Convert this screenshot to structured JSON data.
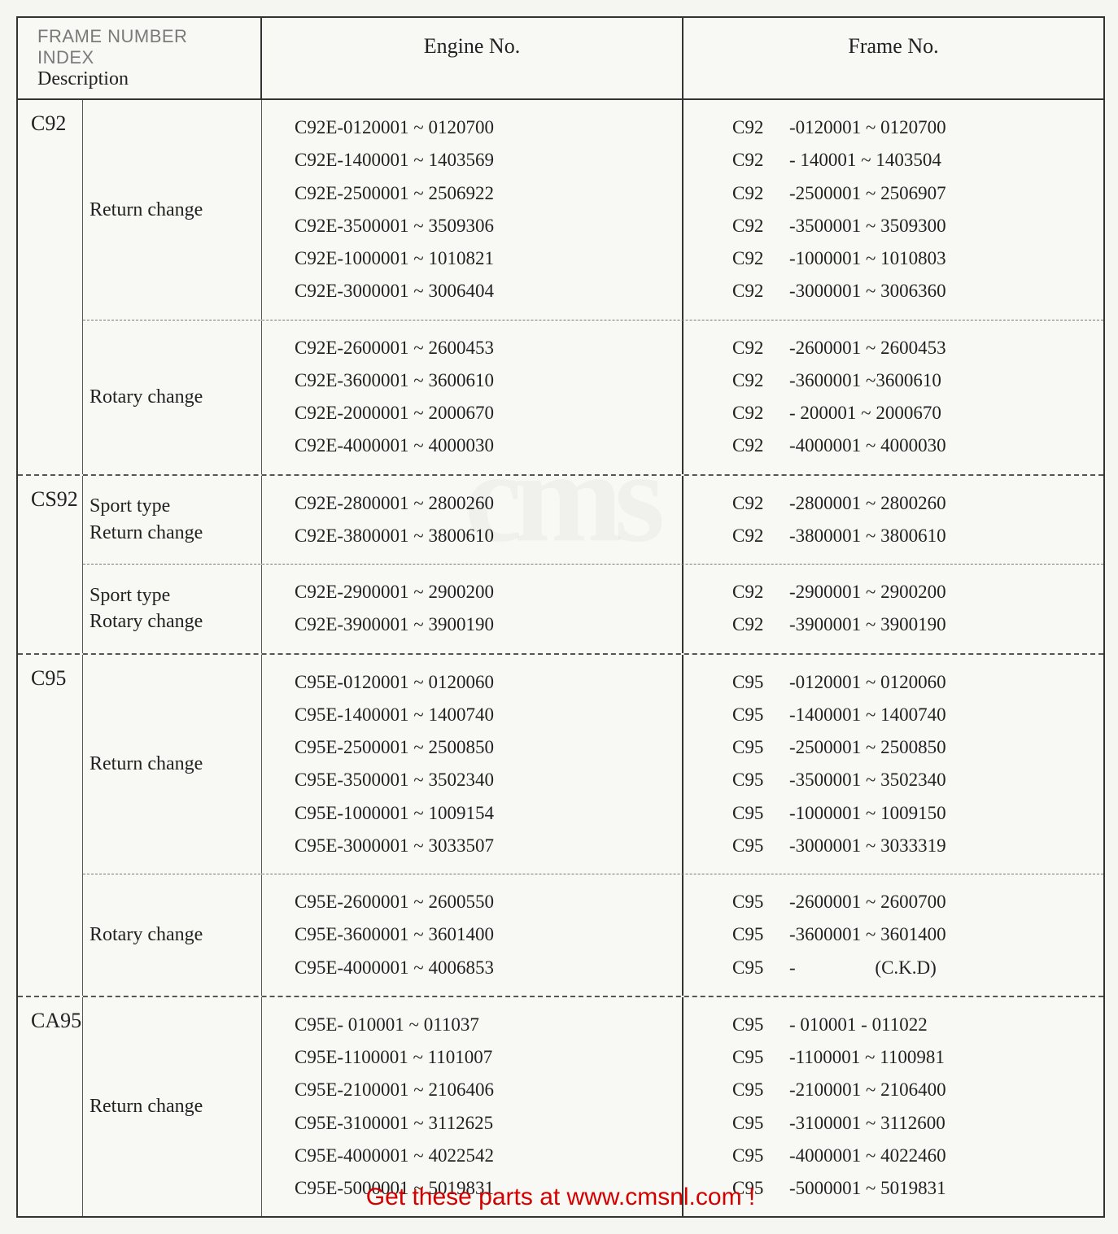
{
  "header": {
    "index_title": "FRAME NUMBER INDEX",
    "description_label": "Description",
    "engine_col": "Engine No.",
    "frame_col": "Frame No."
  },
  "overlay_text": "Get these parts at www.cmsnl.com !",
  "watermark": "cms",
  "models": [
    {
      "model": "C92",
      "groups": [
        {
          "label": "Return change",
          "rows": [
            {
              "engine": "C92E-0120001 ~ 0120700",
              "frame_prefix": "C92",
              "frame_rest": "-0120001 ~ 0120700"
            },
            {
              "engine": "C92E-1400001 ~ 1403569",
              "frame_prefix": "C92",
              "frame_rest": "- 140001 ~ 1403504"
            },
            {
              "engine": "C92E-2500001 ~ 2506922",
              "frame_prefix": "C92",
              "frame_rest": "-2500001 ~ 2506907"
            },
            {
              "engine": "C92E-3500001 ~ 3509306",
              "frame_prefix": "C92",
              "frame_rest": "-3500001 ~ 3509300"
            },
            {
              "engine": "C92E-1000001 ~ 1010821",
              "frame_prefix": "C92",
              "frame_rest": "-1000001 ~ 1010803"
            },
            {
              "engine": "C92E-3000001 ~ 3006404",
              "frame_prefix": "C92",
              "frame_rest": "-3000001 ~ 3006360"
            }
          ]
        },
        {
          "label": "Rotary change",
          "rows": [
            {
              "engine": "C92E-2600001 ~ 2600453",
              "frame_prefix": "C92",
              "frame_rest": "-2600001 ~ 2600453"
            },
            {
              "engine": "C92E-3600001 ~ 3600610",
              "frame_prefix": "C92",
              "frame_rest": "-3600001 ~3600610"
            },
            {
              "engine": "C92E-2000001 ~ 2000670",
              "frame_prefix": "C92",
              "frame_rest": "- 200001 ~ 2000670"
            },
            {
              "engine": "C92E-4000001 ~ 4000030",
              "frame_prefix": "C92",
              "frame_rest": "-4000001 ~ 4000030"
            }
          ]
        }
      ]
    },
    {
      "model": "CS92",
      "groups": [
        {
          "label": "Sport type\nReturn change",
          "rows": [
            {
              "engine": "C92E-2800001 ~ 2800260",
              "frame_prefix": "C92",
              "frame_rest": "-2800001 ~ 2800260"
            },
            {
              "engine": "C92E-3800001 ~ 3800610",
              "frame_prefix": "C92",
              "frame_rest": "-3800001 ~ 3800610"
            }
          ]
        },
        {
          "label": "Sport type\nRotary change",
          "rows": [
            {
              "engine": "C92E-2900001 ~ 2900200",
              "frame_prefix": "C92",
              "frame_rest": "-2900001 ~ 2900200"
            },
            {
              "engine": "C92E-3900001 ~ 3900190",
              "frame_prefix": "C92",
              "frame_rest": "-3900001 ~ 3900190"
            }
          ]
        }
      ]
    },
    {
      "model": "C95",
      "groups": [
        {
          "label": "Return change",
          "rows": [
            {
              "engine": "C95E-0120001 ~ 0120060",
              "frame_prefix": "C95",
              "frame_rest": "-0120001 ~ 0120060"
            },
            {
              "engine": "C95E-1400001 ~ 1400740",
              "frame_prefix": "C95",
              "frame_rest": "-1400001 ~ 1400740"
            },
            {
              "engine": "C95E-2500001 ~ 2500850",
              "frame_prefix": "C95",
              "frame_rest": "-2500001 ~ 2500850"
            },
            {
              "engine": "C95E-3500001 ~ 3502340",
              "frame_prefix": "C95",
              "frame_rest": "-3500001 ~ 3502340"
            },
            {
              "engine": "C95E-1000001 ~ 1009154",
              "frame_prefix": "C95",
              "frame_rest": "-1000001 ~ 1009150"
            },
            {
              "engine": "C95E-3000001 ~ 3033507",
              "frame_prefix": "C95",
              "frame_rest": "-3000001 ~ 3033319"
            }
          ]
        },
        {
          "label": "Rotary change",
          "rows": [
            {
              "engine": "C95E-2600001 ~ 2600550",
              "frame_prefix": "C95",
              "frame_rest": "-2600001 ~ 2600700"
            },
            {
              "engine": "C95E-3600001 ~ 3601400",
              "frame_prefix": "C95",
              "frame_rest": "-3600001 ~ 3601400"
            },
            {
              "engine": "C95E-4000001 ~ 4006853",
              "frame_prefix": "C95",
              "frame_rest": "-                 (C.K.D)"
            }
          ]
        }
      ]
    },
    {
      "model": "CA95",
      "groups": [
        {
          "label": "Return change",
          "rows": [
            {
              "engine": "C95E- 010001 ~  011037",
              "frame_prefix": "C95",
              "frame_rest": "- 010001 -  011022"
            },
            {
              "engine": "C95E-1100001 ~ 1101007",
              "frame_prefix": "C95",
              "frame_rest": "-1100001 ~ 1100981"
            },
            {
              "engine": "C95E-2100001 ~ 2106406",
              "frame_prefix": "C95",
              "frame_rest": "-2100001 ~ 2106400"
            },
            {
              "engine": "C95E-3100001 ~ 3112625",
              "frame_prefix": "C95",
              "frame_rest": "-3100001 ~ 3112600"
            },
            {
              "engine": "C95E-4000001 ~ 4022542",
              "frame_prefix": "C95",
              "frame_rest": "-4000001 ~ 4022460"
            },
            {
              "engine": "C95E-5000001 ~ 5019831",
              "frame_prefix": "C95",
              "frame_rest": "-5000001 ~ 5019831"
            }
          ]
        }
      ]
    }
  ]
}
